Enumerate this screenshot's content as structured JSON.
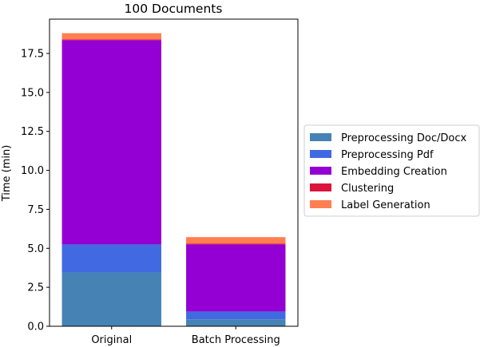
{
  "chart_data": {
    "type": "bar",
    "stacked": true,
    "title": "100 Documents",
    "xlabel": "",
    "ylabel": "Time (min)",
    "categories": [
      "Original",
      "Batch Processing"
    ],
    "ylim": [
      0,
      19.7
    ],
    "yticks": [
      "0.0",
      "2.5",
      "5.0",
      "7.5",
      "10.0",
      "12.5",
      "15.0",
      "17.5"
    ],
    "series": [
      {
        "name": "Preprocessing Doc/Docx",
        "color": "#4682b4",
        "values": [
          3.45,
          0.45
        ]
      },
      {
        "name": "Preprocessing Pdf",
        "color": "#4169e1",
        "values": [
          1.8,
          0.5
        ]
      },
      {
        "name": "Embedding Creation",
        "color": "#9400d3",
        "values": [
          13.1,
          4.3
        ]
      },
      {
        "name": "Clustering",
        "color": "#dc143c",
        "values": [
          0.05,
          0.05
        ]
      },
      {
        "name": "Label Generation",
        "color": "#ff7f50",
        "values": [
          0.4,
          0.42
        ]
      }
    ],
    "grid": false,
    "legend": "right"
  }
}
